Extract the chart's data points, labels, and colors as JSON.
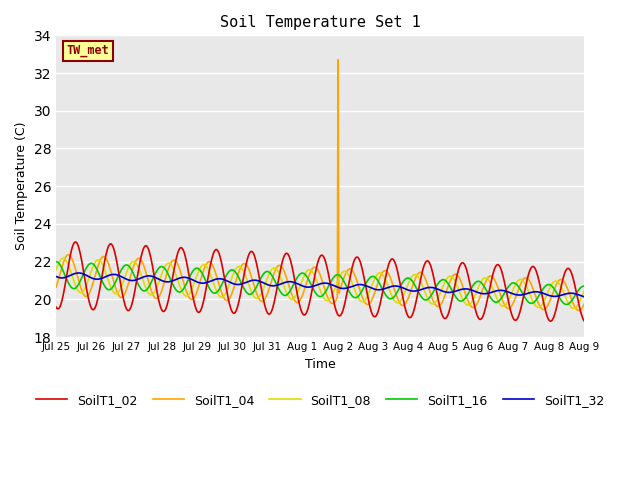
{
  "title": "Soil Temperature Set 1",
  "ylabel": "Soil Temperature (C)",
  "xlabel": "Time",
  "ylim": [
    18,
    34
  ],
  "yticks": [
    18,
    20,
    22,
    24,
    26,
    28,
    30,
    32,
    34
  ],
  "bg_color": "#e8e8e8",
  "label_text": "TW_met",
  "label_bg": "#ffff99",
  "label_fg": "#8b0000",
  "series_colors": {
    "SoilT1_02": "#dd0000",
    "SoilT1_04": "#ffa500",
    "SoilT1_08": "#dddd00",
    "SoilT1_16": "#00cc00",
    "SoilT1_32": "#0000cc"
  },
  "xtick_labels": [
    "Jul 25",
    "Jul 26",
    "Jul 27",
    "Jul 28",
    "Jul 29",
    "Jul 30",
    "Jul 31",
    "Aug 1",
    "Aug 2",
    "Aug 3",
    "Aug 4",
    "Aug 5",
    "Aug 6",
    "Aug 7",
    "Aug 8",
    "Aug 9"
  ],
  "n_days": 15,
  "points_per_day": 48,
  "spike_day": 8,
  "spike_value": 32.7
}
